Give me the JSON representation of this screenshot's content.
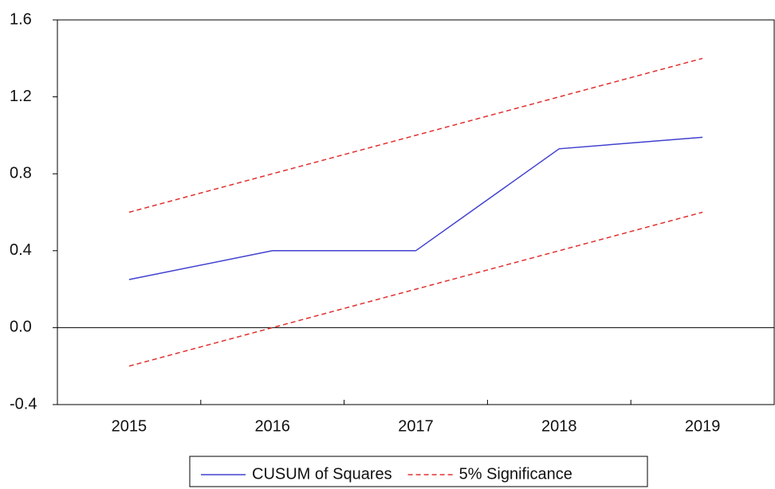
{
  "chart_data": {
    "type": "line",
    "categories": [
      "2015",
      "2016",
      "2017",
      "2018",
      "2019"
    ],
    "series": [
      {
        "name": "CUSUM of Squares",
        "color": "#4040d0",
        "dashed": false,
        "values": [
          0.25,
          0.4,
          0.4,
          0.93,
          0.99
        ]
      },
      {
        "name": "5% Significance",
        "color": "#e03030",
        "dashed": true,
        "values": [
          0.6,
          0.8,
          1.0,
          1.2,
          1.4
        ],
        "lower": [
          -0.2,
          0.0,
          0.2,
          0.4,
          0.6
        ]
      }
    ],
    "ylim": [
      -0.4,
      1.6
    ],
    "yticks": [
      -0.4,
      {
        "value": 0,
        "label": "0.0"
      },
      0.4,
      0.8,
      1.2,
      1.6
    ],
    "zero_line": true,
    "legend": "bottom"
  }
}
